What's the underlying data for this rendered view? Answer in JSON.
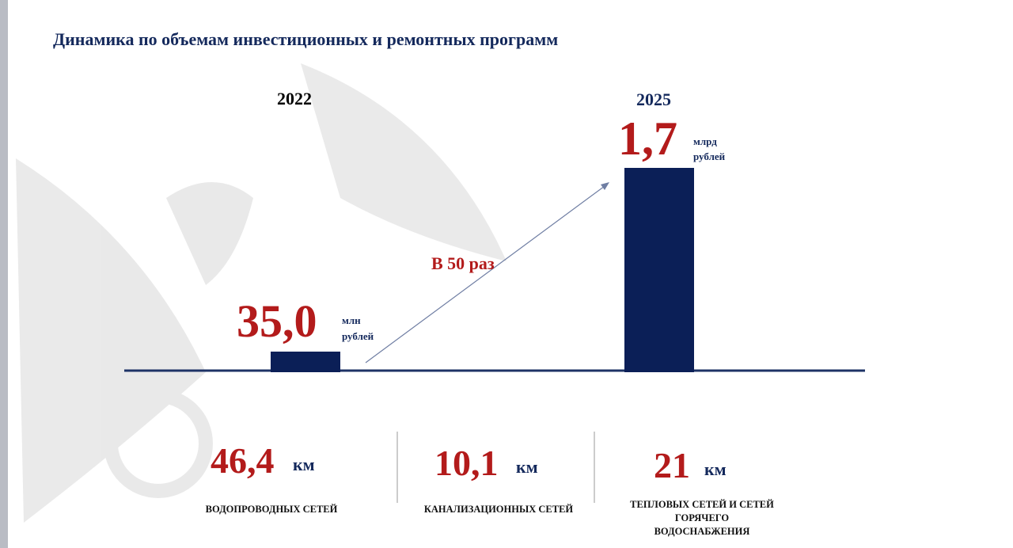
{
  "title": "Динамика по объемам инвестиционных и ремонтных программ",
  "comparison": {
    "before": {
      "year": "2022",
      "value": "35,0",
      "unit_lines": [
        "млн",
        "рублей"
      ]
    },
    "after": {
      "year": "2025",
      "value": "1,7",
      "unit_lines": [
        "млрд",
        "рублей"
      ]
    },
    "growth": "В 50 раз"
  },
  "stats": [
    {
      "value": "46,4",
      "unit": "км",
      "label_lines": [
        "ВОДОПРОВОДНЫХ СЕТЕЙ"
      ]
    },
    {
      "value": "10,1",
      "unit": "км",
      "label_lines": [
        "КАНАЛИЗАЦИОННЫХ СЕТЕЙ"
      ]
    },
    {
      "value": "21",
      "unit": "км",
      "label_lines": [
        "ТЕПЛОВЫХ СЕТЕЙ И СЕТЕЙ",
        "ГОРЯЧЕГО",
        "ВОДОСНАБЖЕНИЯ"
      ]
    }
  ]
}
